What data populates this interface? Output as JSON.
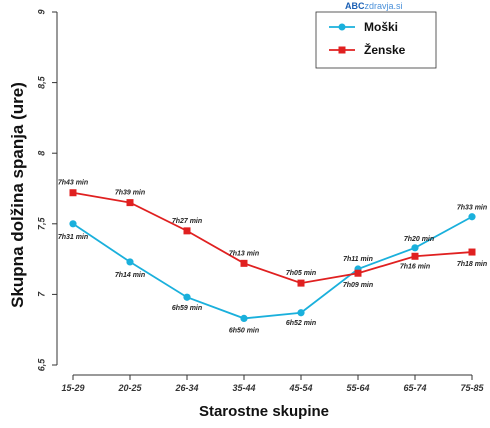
{
  "chart_data": {
    "type": "line",
    "xlabel": "Starostne skupine",
    "ylabel": "Skupna dolžina spanja (ure)",
    "categories": [
      "15-29",
      "20-25",
      "26-34",
      "35-44",
      "45-54",
      "55-64",
      "65-74",
      "75-85"
    ],
    "ylim": [
      6.5,
      9
    ],
    "yticks": [
      "6,5",
      "7",
      "7,5",
      "8",
      "8,5",
      "9"
    ],
    "ytick_values": [
      6.5,
      7,
      7.5,
      8,
      8.5,
      9
    ],
    "series": [
      {
        "name": "Moški",
        "color": "#1ab0dc",
        "marker": "circle",
        "values": [
          7.5,
          7.23,
          6.98,
          6.83,
          6.87,
          7.18,
          7.33,
          7.55
        ],
        "labels": [
          "7h31 min",
          "7h14 min",
          "6h59 min",
          "6h50 min",
          "6h52 min",
          "7h11 min",
          "7h20 min",
          "7h33 min"
        ]
      },
      {
        "name": "Ženske",
        "color": "#e02020",
        "marker": "square",
        "values": [
          7.72,
          7.65,
          7.45,
          7.22,
          7.08,
          7.15,
          7.27,
          7.3
        ],
        "labels": [
          "7h43 min",
          "7h39 min",
          "7h27 min",
          "7h13 min",
          "7h05 min",
          "7h09 min",
          "7h16 min",
          "7h18 min"
        ]
      }
    ],
    "legend": "top-right",
    "grid": false
  },
  "brand": {
    "part1": "ABC",
    "part2": "zdravja",
    "suffix": ".si"
  }
}
